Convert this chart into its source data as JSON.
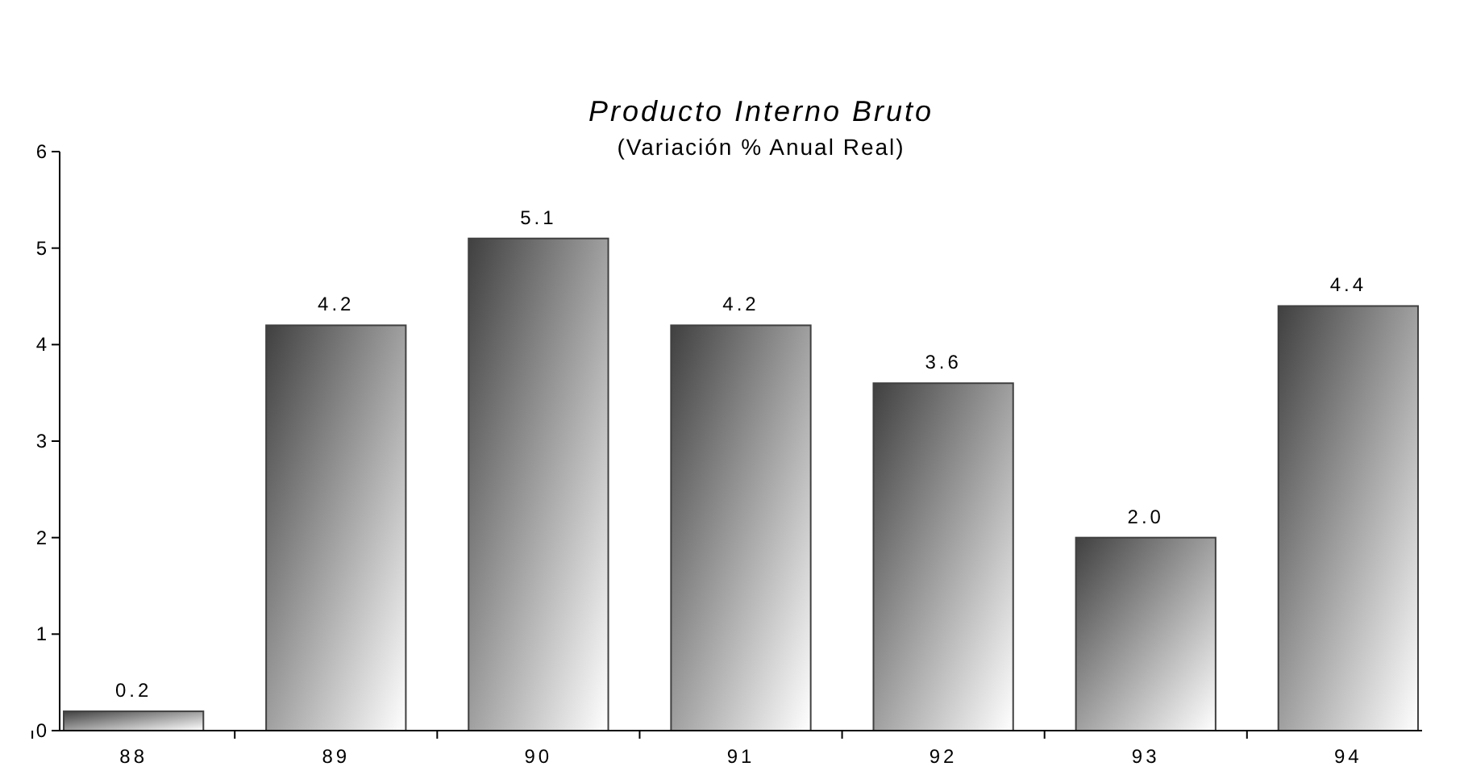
{
  "chart_data": {
    "type": "bar",
    "title": "Producto Interno Bruto",
    "subtitle": "(Variación % Anual Real)",
    "categories": [
      "88",
      "89",
      "90",
      "91",
      "92",
      "93",
      "94"
    ],
    "values": [
      0.2,
      4.2,
      5.1,
      4.2,
      3.6,
      2.0,
      4.4
    ],
    "value_labels": [
      "0.2",
      "4.2",
      "5.1",
      "4.2",
      "3.6",
      "2.0",
      "4.4"
    ],
    "color": "#404040",
    "ylim": [
      0,
      6
    ],
    "yticks": [
      0,
      1,
      2,
      3,
      4,
      5,
      6
    ],
    "grid": false
  }
}
